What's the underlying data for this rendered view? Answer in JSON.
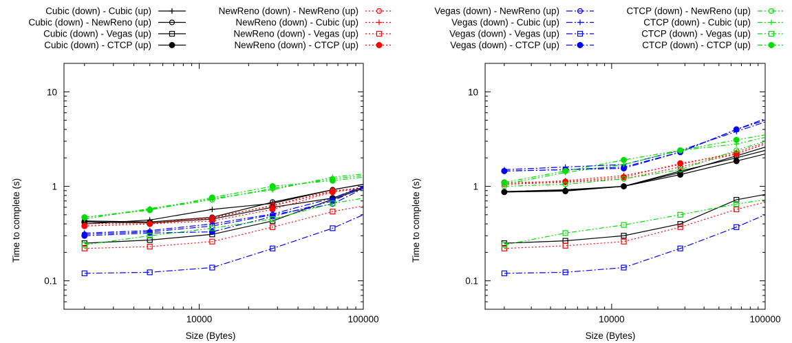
{
  "legend": {
    "entries": [
      {
        "label": "Cubic (down) - Cubic (up)",
        "color": "#000000",
        "dash": "solid",
        "marker": "plus"
      },
      {
        "label": "Cubic (down) - NewReno (up)",
        "color": "#000000",
        "dash": "solid",
        "marker": "circle-open"
      },
      {
        "label": "Cubic (down) - Vegas (up)",
        "color": "#000000",
        "dash": "solid",
        "marker": "square-open"
      },
      {
        "label": "Cubic (down) - CTCP (up)",
        "color": "#000000",
        "dash": "solid",
        "marker": "circle-filled"
      },
      {
        "label": "NewReno (down) - NewReno (up)",
        "color": "#ff0000",
        "dash": "dotted",
        "marker": "circle-open"
      },
      {
        "label": "NewReno (down) - Cubic (up)",
        "color": "#ff0000",
        "dash": "dotted",
        "marker": "plus"
      },
      {
        "label": "NewReno (down) - Vegas (up)",
        "color": "#ff0000",
        "dash": "dotted",
        "marker": "square-open"
      },
      {
        "label": "NewReno (down) - CTCP (up)",
        "color": "#ff0000",
        "dash": "dotted",
        "marker": "circle-filled"
      },
      {
        "label": "Vegas (down) - NewReno (up)",
        "color": "#0000ff",
        "dash": "dashdot",
        "marker": "circle-open"
      },
      {
        "label": "Vegas (down) - Cubic (up)",
        "color": "#0000ff",
        "dash": "dashdot",
        "marker": "plus"
      },
      {
        "label": "Vegas (down) - Vegas (up)",
        "color": "#0000ff",
        "dash": "dashdot",
        "marker": "square-open"
      },
      {
        "label": "Vegas (down) - CTCP (up)",
        "color": "#0000ff",
        "dash": "dashdot",
        "marker": "circle-filled"
      },
      {
        "label": "CTCP (down) - NewReno (up)",
        "color": "#00dd00",
        "dash": "dashdotdot",
        "marker": "circle-open"
      },
      {
        "label": "CTCP (down) - Cubic (up)",
        "color": "#00dd00",
        "dash": "dashdotdot",
        "marker": "plus"
      },
      {
        "label": "CTCP (down) - Vegas (up)",
        "color": "#00dd00",
        "dash": "dashdotdot",
        "marker": "square-open"
      },
      {
        "label": "CTCP (down) - CTCP (up)",
        "color": "#00dd00",
        "dash": "dashdotdot",
        "marker": "circle-filled"
      }
    ]
  },
  "chart_data": [
    {
      "type": "line",
      "xlabel": "Size (Bytes)",
      "ylabel": "Time to complete (s)",
      "xscale": "log",
      "yscale": "log",
      "xlim": [
        1500,
        100000
      ],
      "ylim": [
        0.05,
        20
      ],
      "xticks": [
        {
          "value": 10000,
          "label": "10000"
        },
        {
          "value": 100000,
          "label": "100000"
        }
      ],
      "yticks": [
        {
          "value": 0.1,
          "label": "0.1"
        },
        {
          "value": 1,
          "label": "1"
        },
        {
          "value": 10,
          "label": "10"
        }
      ],
      "grid": false,
      "x": [
        2000,
        5000,
        12000,
        28000,
        65000,
        100000
      ],
      "series": [
        {
          "name": "Cubic (down) - Cubic (up)",
          "values": [
            0.4,
            0.44,
            0.57,
            0.66,
            0.92,
            1.05
          ]
        },
        {
          "name": "Cubic (down) - NewReno (up)",
          "values": [
            0.43,
            0.42,
            0.47,
            0.68,
            0.92,
            1.05
          ]
        },
        {
          "name": "Cubic (down) - Vegas (up)",
          "values": [
            0.25,
            0.27,
            0.31,
            0.43,
            0.73,
            0.95
          ]
        },
        {
          "name": "Cubic (down) - CTCP (up)",
          "values": [
            0.42,
            0.41,
            0.45,
            0.6,
            0.75,
            0.98
          ]
        },
        {
          "name": "NewReno (down) - NewReno (up)",
          "values": [
            0.38,
            0.4,
            0.46,
            0.63,
            0.9,
            0.95
          ]
        },
        {
          "name": "NewReno (down) - Cubic (up)",
          "values": [
            0.4,
            0.41,
            0.47,
            0.62,
            0.88,
            0.98
          ]
        },
        {
          "name": "NewReno (down) - Vegas (up)",
          "values": [
            0.22,
            0.23,
            0.26,
            0.37,
            0.54,
            0.62
          ]
        },
        {
          "name": "NewReno (down) - CTCP (up)",
          "values": [
            0.38,
            0.4,
            0.43,
            0.57,
            0.87,
            0.95
          ]
        },
        {
          "name": "Vegas (down) - NewReno (up)",
          "values": [
            0.31,
            0.33,
            0.38,
            0.5,
            0.65,
            0.95
          ]
        },
        {
          "name": "Vegas (down) - Cubic (up)",
          "values": [
            0.32,
            0.34,
            0.4,
            0.51,
            0.75,
            1.0
          ]
        },
        {
          "name": "Vegas (down) - Vegas (up)",
          "values": [
            0.12,
            0.123,
            0.138,
            0.22,
            0.36,
            0.5
          ]
        },
        {
          "name": "Vegas (down) - CTCP (up)",
          "values": [
            0.3,
            0.32,
            0.33,
            0.48,
            0.7,
            0.98
          ]
        },
        {
          "name": "CTCP (down) - NewReno (up)",
          "values": [
            0.47,
            0.57,
            0.72,
            0.95,
            1.2,
            1.3
          ]
        },
        {
          "name": "CTCP (down) - Cubic (up)",
          "values": [
            0.45,
            0.58,
            0.74,
            0.92,
            1.25,
            1.35
          ]
        },
        {
          "name": "CTCP (down) - Vegas (up)",
          "values": [
            0.24,
            0.3,
            0.36,
            0.45,
            0.66,
            0.75
          ]
        },
        {
          "name": "CTCP (down) - CTCP (up)",
          "values": [
            0.47,
            0.56,
            0.76,
            1.0,
            1.15,
            1.25
          ]
        }
      ]
    },
    {
      "type": "line",
      "xlabel": "Size (Bytes)",
      "ylabel": "Time to complete (s)",
      "xscale": "log",
      "yscale": "log",
      "xlim": [
        1500,
        100000
      ],
      "ylim": [
        0.05,
        20
      ],
      "xticks": [
        {
          "value": 10000,
          "label": "10000"
        },
        {
          "value": 100000,
          "label": "100000"
        }
      ],
      "yticks": [
        {
          "value": 0.1,
          "label": "0.1"
        },
        {
          "value": 1,
          "label": "1"
        },
        {
          "value": 10,
          "label": "10"
        }
      ],
      "grid": false,
      "x": [
        2000,
        5000,
        12000,
        28000,
        65000,
        100000
      ],
      "series": [
        {
          "name": "Cubic (down) - Cubic (up)",
          "values": [
            0.88,
            0.92,
            1.0,
            1.45,
            2.0,
            2.4
          ]
        },
        {
          "name": "Cubic (down) - NewReno (up)",
          "values": [
            0.87,
            0.9,
            1.0,
            1.4,
            2.1,
            2.6
          ]
        },
        {
          "name": "Cubic (down) - Vegas (up)",
          "values": [
            0.25,
            0.265,
            0.3,
            0.4,
            0.72,
            0.82
          ]
        },
        {
          "name": "Cubic (down) - CTCP (up)",
          "values": [
            0.87,
            0.89,
            1.0,
            1.33,
            1.85,
            2.2
          ]
        },
        {
          "name": "NewReno (down) - NewReno (up)",
          "values": [
            1.05,
            1.1,
            1.2,
            1.6,
            2.2,
            2.8
          ]
        },
        {
          "name": "NewReno (down) - Cubic (up)",
          "values": [
            1.05,
            1.15,
            1.3,
            1.7,
            2.3,
            2.9
          ]
        },
        {
          "name": "NewReno (down) - Vegas (up)",
          "values": [
            0.22,
            0.235,
            0.26,
            0.37,
            0.57,
            0.68
          ]
        },
        {
          "name": "NewReno (down) - CTCP (up)",
          "values": [
            1.1,
            1.12,
            1.25,
            1.75,
            2.2,
            2.8
          ]
        },
        {
          "name": "Vegas (down) - NewReno (up)",
          "values": [
            1.45,
            1.5,
            1.6,
            2.3,
            4.0,
            5.2
          ]
        },
        {
          "name": "Vegas (down) - Cubic (up)",
          "values": [
            1.5,
            1.6,
            1.7,
            2.4,
            3.8,
            4.8
          ]
        },
        {
          "name": "Vegas (down) - Vegas (up)",
          "values": [
            0.12,
            0.123,
            0.138,
            0.22,
            0.37,
            0.5
          ]
        },
        {
          "name": "Vegas (down) - CTCP (up)",
          "values": [
            1.45,
            1.5,
            1.55,
            2.3,
            4.0,
            5.0
          ]
        },
        {
          "name": "CTCP (down) - NewReno (up)",
          "values": [
            1.0,
            1.05,
            1.2,
            1.5,
            2.4,
            3.0
          ]
        },
        {
          "name": "CTCP (down) - Cubic (up)",
          "values": [
            1.05,
            1.4,
            1.7,
            2.4,
            2.8,
            3.3
          ]
        },
        {
          "name": "CTCP (down) - Vegas (up)",
          "values": [
            0.24,
            0.32,
            0.39,
            0.5,
            0.65,
            0.72
          ]
        },
        {
          "name": "CTCP (down) - CTCP (up)",
          "values": [
            1.1,
            1.45,
            1.9,
            2.4,
            3.1,
            3.5
          ]
        }
      ]
    }
  ]
}
